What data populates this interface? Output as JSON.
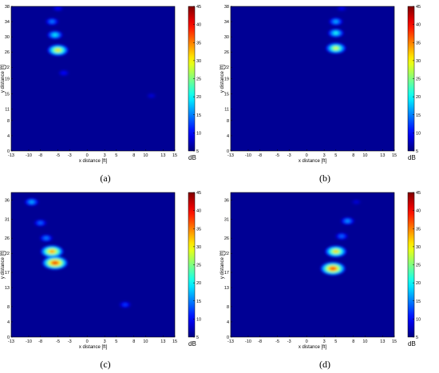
{
  "captions": [
    "(a)",
    "(b)",
    "(c)",
    "(d)"
  ],
  "colors": {
    "background": "#0000a0",
    "colormap": "jet"
  },
  "chart_data": [
    {
      "type": "heatmap",
      "panel": "(a)",
      "xlabel": "x distance [ft]",
      "ylabel": "y distance [ft]",
      "colorbar_label": "dB",
      "x_ticks": [
        "-13",
        "-10",
        "-8",
        "-5",
        "-3",
        "0",
        "3",
        "5",
        "8",
        "10",
        "13",
        "15"
      ],
      "y_ticks": [
        "0",
        "4",
        "8",
        "11",
        "15",
        "19",
        "22",
        "26",
        "30",
        "34",
        "38"
      ],
      "colorbar_ticks": [
        "5",
        "10",
        "15",
        "20",
        "25",
        "30",
        "35",
        "40",
        "45"
      ],
      "xlim": [
        -13,
        15
      ],
      "ylim": [
        0,
        38
      ],
      "clim": [
        5,
        45
      ],
      "hotspots": [
        {
          "x": -5.0,
          "y": 26.5,
          "peak_db": 32
        },
        {
          "x": -5.5,
          "y": 30.5,
          "peak_db": 21
        },
        {
          "x": -6.0,
          "y": 34.0,
          "peak_db": 16
        },
        {
          "x": -5.0,
          "y": 37.5,
          "peak_db": 11
        },
        {
          "x": -4.0,
          "y": 20.5,
          "peak_db": 11
        },
        {
          "x": 11.0,
          "y": 14.5,
          "peak_db": 9
        }
      ]
    },
    {
      "type": "heatmap",
      "panel": "(b)",
      "xlabel": "x distance [ft]",
      "ylabel": "y distance [ft]",
      "colorbar_label": "dB",
      "x_ticks": [
        "-13",
        "-10",
        "-8",
        "-5",
        "-3",
        "0",
        "3",
        "5",
        "8",
        "10",
        "13",
        "15"
      ],
      "y_ticks": [
        "0",
        "4",
        "8",
        "11",
        "15",
        "19",
        "22",
        "26",
        "30",
        "34",
        "38"
      ],
      "colorbar_ticks": [
        "5",
        "10",
        "15",
        "20",
        "25",
        "30",
        "35",
        "40",
        "45"
      ],
      "xlim": [
        -13,
        15
      ],
      "ylim": [
        0,
        38
      ],
      "clim": [
        5,
        45
      ],
      "hotspots": [
        {
          "x": 5.0,
          "y": 27.0,
          "peak_db": 30
        },
        {
          "x": 5.0,
          "y": 31.0,
          "peak_db": 22
        },
        {
          "x": 5.0,
          "y": 34.0,
          "peak_db": 18
        },
        {
          "x": 6.0,
          "y": 37.5,
          "peak_db": 10
        }
      ]
    },
    {
      "type": "heatmap",
      "panel": "(c)",
      "xlabel": "x distance [ft]",
      "ylabel": "y distance [ft]",
      "colorbar_label": "dB",
      "x_ticks": [
        "-13",
        "-10",
        "-8",
        "-5",
        "-3",
        "0",
        "3",
        "5",
        "8",
        "10",
        "13",
        "15"
      ],
      "y_ticks": [
        "0",
        "4",
        "8",
        "13",
        "17",
        "22",
        "26",
        "31",
        "36"
      ],
      "colorbar_ticks": [
        "5",
        "10",
        "15",
        "20",
        "25",
        "30",
        "35",
        "40",
        "45"
      ],
      "xlim": [
        -13,
        15
      ],
      "ylim": [
        0,
        38
      ],
      "clim": [
        5,
        45
      ],
      "hotspots": [
        {
          "x": -5.5,
          "y": 19.5,
          "peak_db": 41
        },
        {
          "x": -6.0,
          "y": 22.5,
          "peak_db": 36
        },
        {
          "x": -7.0,
          "y": 26.0,
          "peak_db": 16
        },
        {
          "x": -8.0,
          "y": 30.0,
          "peak_db": 15
        },
        {
          "x": -9.5,
          "y": 35.5,
          "peak_db": 18
        },
        {
          "x": 6.5,
          "y": 8.5,
          "peak_db": 13
        }
      ]
    },
    {
      "type": "heatmap",
      "panel": "(d)",
      "xlabel": "x distance [ft]",
      "ylabel": "y distance [ft]",
      "colorbar_label": "dB",
      "x_ticks": [
        "-13",
        "-10",
        "-8",
        "-5",
        "-3",
        "0",
        "3",
        "5",
        "8",
        "10",
        "13",
        "15"
      ],
      "y_ticks": [
        "0",
        "4",
        "8",
        "13",
        "17",
        "22",
        "26",
        "31",
        "36"
      ],
      "colorbar_ticks": [
        "5",
        "10",
        "15",
        "20",
        "25",
        "30",
        "35",
        "40",
        "45"
      ],
      "xlim": [
        -13,
        15
      ],
      "ylim": [
        0,
        38
      ],
      "clim": [
        5,
        45
      ],
      "hotspots": [
        {
          "x": 4.5,
          "y": 18.0,
          "peak_db": 40
        },
        {
          "x": 5.0,
          "y": 22.5,
          "peak_db": 33
        },
        {
          "x": 6.0,
          "y": 26.5,
          "peak_db": 15
        },
        {
          "x": 7.0,
          "y": 30.5,
          "peak_db": 17
        },
        {
          "x": 8.5,
          "y": 35.5,
          "peak_db": 9
        }
      ]
    }
  ]
}
